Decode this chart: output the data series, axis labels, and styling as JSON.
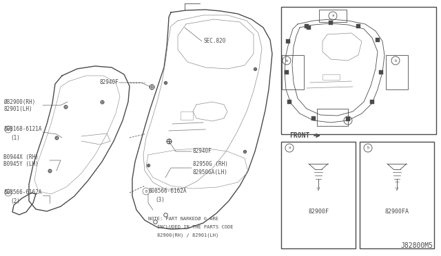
{
  "bg_color": "#ffffff",
  "fig_bg": "#ffffff",
  "diagram_id": "J82800M5",
  "note_line1": "NOTE: PART NARKEDØ © ARE",
  "note_line2": "INCLUDED IN THE PARTS CODE",
  "note_line3": "82900(RH) / 82901(LH)",
  "labels": {
    "sec820": "SEC.820",
    "82940F_top": "82940F",
    "82900RH": "Ø82900(RH)",
    "82901LH": "82901(LH)",
    "08168_6121A_1": "ß0B168-6121A",
    "08168_6121A_2": "(1)",
    "80944X": "B0944X (RH)",
    "80945Y": "B0945Y (LH)",
    "08566_6162A_2a": "ß08566-6162A",
    "08566_6162A_2b": "(2)",
    "82940F_mid": "82940F",
    "82950G": "82950G (RH)",
    "82950GA": "82950GA(LH)",
    "08566_6162A_3a": "ß08566-6162A",
    "08566_6162A_3b": "(3)",
    "82900F": "82900F",
    "82900FA": "82900FA",
    "front": "FRONT"
  }
}
